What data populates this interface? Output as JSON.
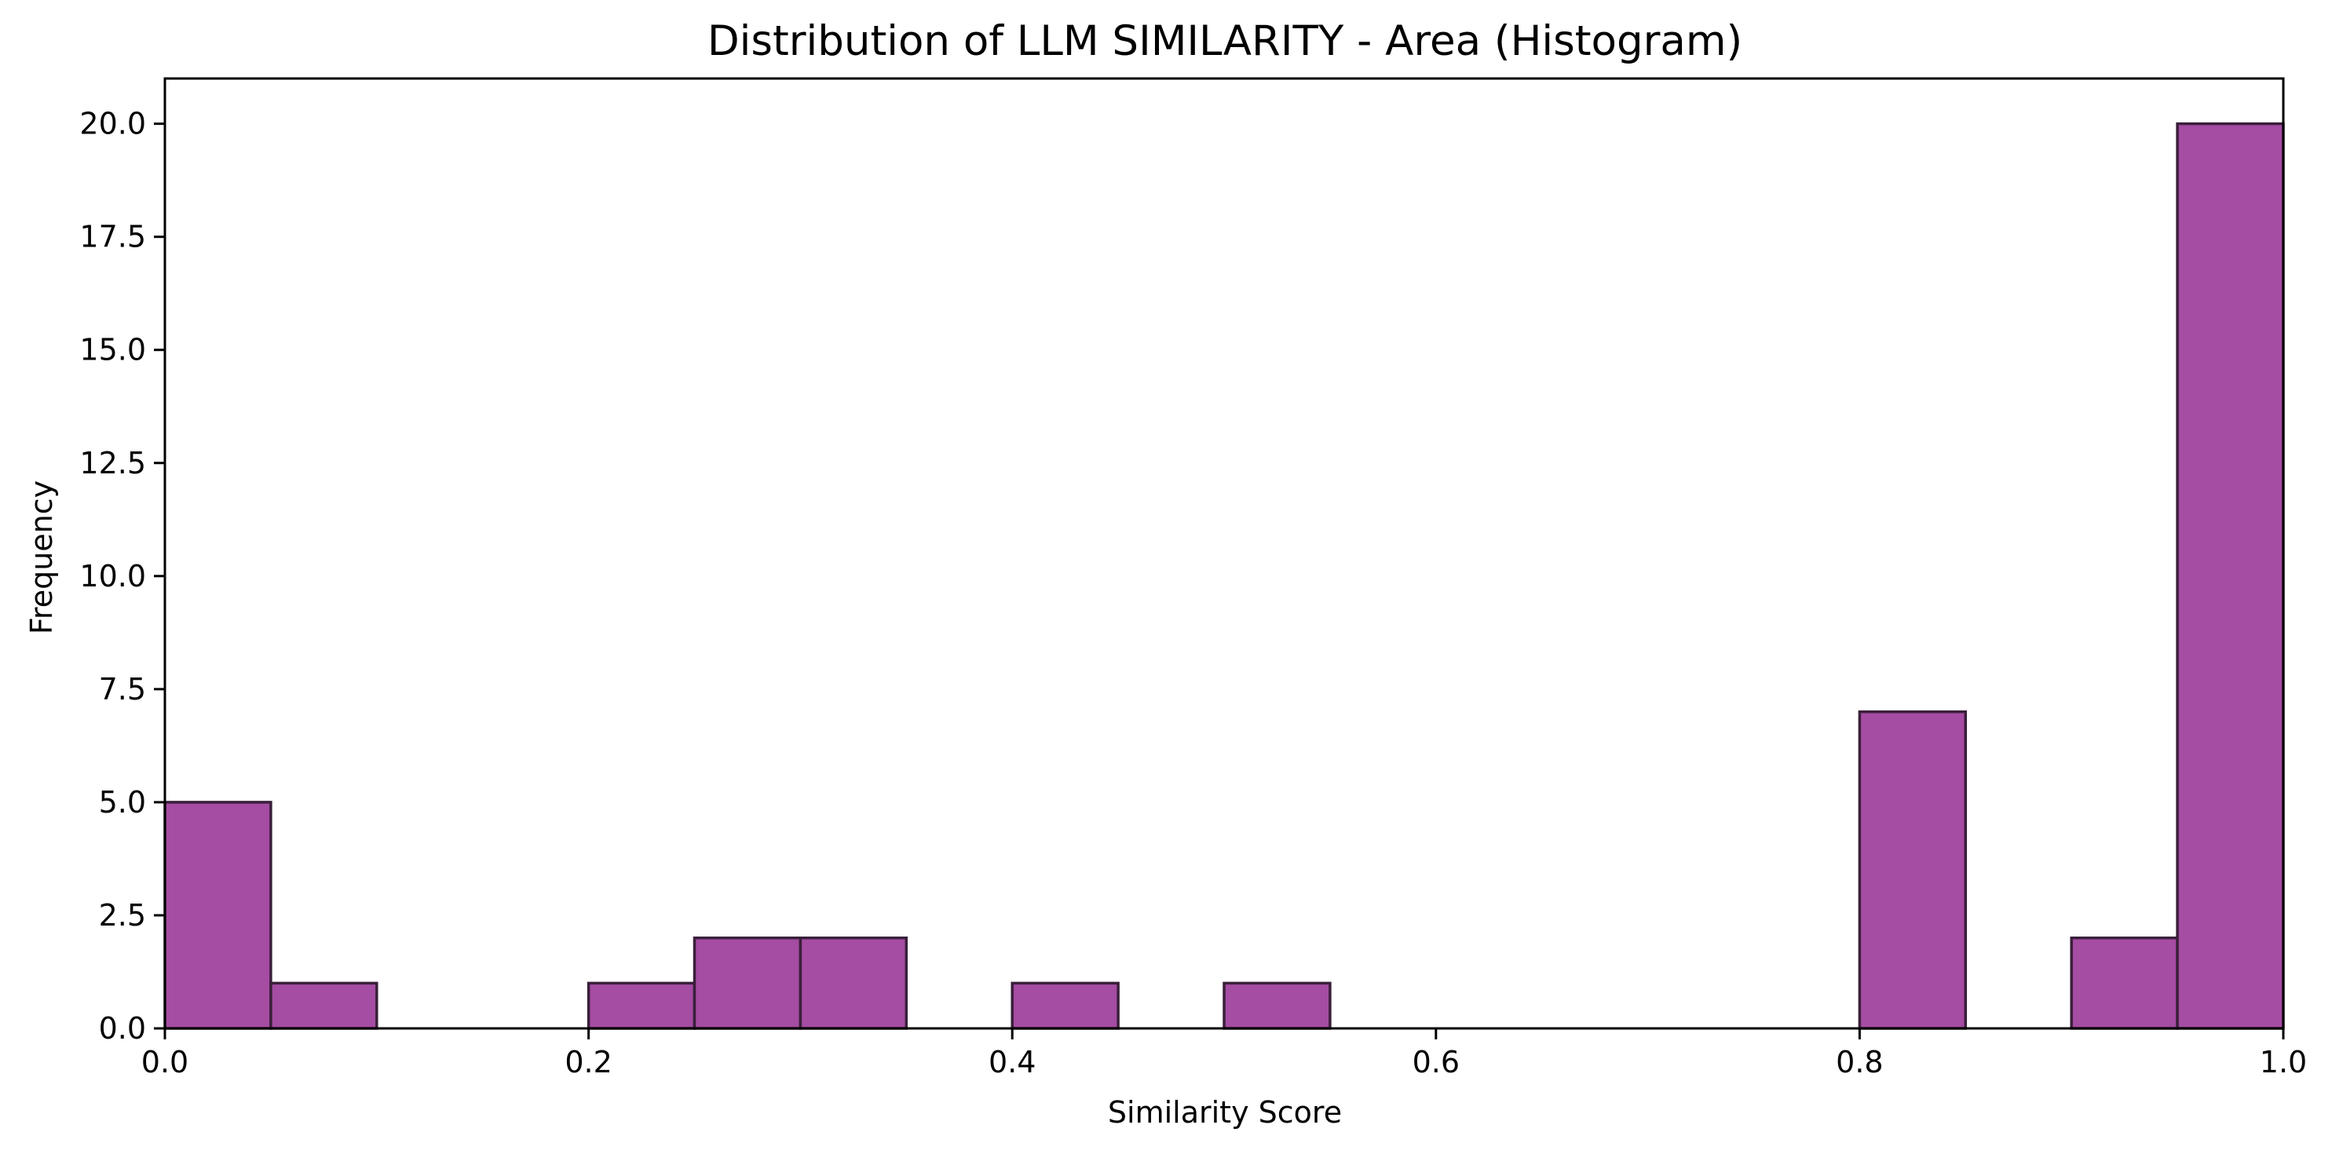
{
  "chart_data": {
    "type": "bar",
    "title": "Distribution of LLM SIMILARITY - Area (Histogram)",
    "xlabel": "Similarity Score",
    "ylabel": "Frequency",
    "xlim": [
      0.0,
      1.0
    ],
    "ylim": [
      0,
      21
    ],
    "bin_width": 0.05,
    "bin_starts": [
      0.0,
      0.05,
      0.1,
      0.15,
      0.2,
      0.25,
      0.3,
      0.35,
      0.4,
      0.45,
      0.5,
      0.55,
      0.6,
      0.65,
      0.7,
      0.75,
      0.8,
      0.85,
      0.9,
      0.95
    ],
    "values": [
      5,
      1,
      0,
      0,
      1,
      2,
      2,
      0,
      1,
      0,
      1,
      0,
      0,
      0,
      0,
      0,
      7,
      0,
      2,
      20
    ],
    "x_ticks": [
      0.0,
      0.2,
      0.4,
      0.6,
      0.8,
      1.0
    ],
    "x_tick_labels": [
      "0.0",
      "0.2",
      "0.4",
      "0.6",
      "0.8",
      "1.0"
    ],
    "y_ticks": [
      0.0,
      2.5,
      5.0,
      7.5,
      10.0,
      12.5,
      15.0,
      17.5,
      20.0
    ],
    "y_tick_labels": [
      "0.0",
      "2.5",
      "5.0",
      "7.5",
      "10.0",
      "12.5",
      "15.0",
      "17.5",
      "20.0"
    ],
    "grid": false,
    "legend": "none",
    "colors": {
      "bar_fill": "#a54ca3",
      "bar_edge": "#3a1f3a",
      "axis": "#000000"
    }
  }
}
